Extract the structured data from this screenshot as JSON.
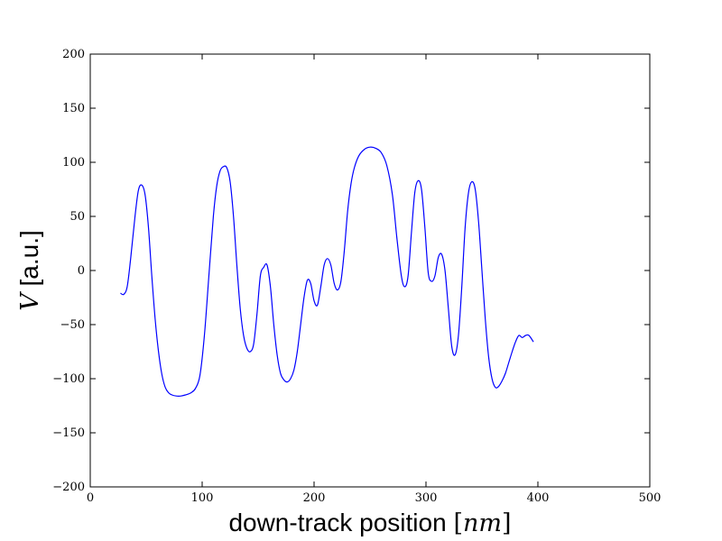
{
  "chart_data": {
    "type": "line",
    "title": "",
    "xlabel": "down-track position [nm]",
    "xlabel_text": "down-track position ",
    "xlabel_unit": "nm",
    "ylabel": "V [a.u.]",
    "ylabel_symbol": "V",
    "ylabel_text": " [a.u.]",
    "xlim": [
      0,
      500
    ],
    "ylim": [
      -200,
      200
    ],
    "xticks": [
      0,
      100,
      200,
      300,
      400,
      500
    ],
    "yticks": [
      -200,
      -150,
      -100,
      -50,
      0,
      50,
      100,
      150,
      200
    ],
    "xtick_labels": [
      "0",
      "100",
      "200",
      "300",
      "400",
      "500"
    ],
    "ytick_labels": [
      "−200",
      "−150",
      "−100",
      "−50",
      "0",
      "50",
      "100",
      "150",
      "200"
    ],
    "grid": false,
    "legend": "none",
    "line_color": "#0000ff",
    "series": [
      {
        "x": [
          27,
          30,
          33,
          36,
          40,
          43,
          46,
          49,
          52,
          55,
          58,
          61,
          64,
          67,
          70,
          73,
          77,
          81,
          85,
          90,
          94,
          98,
          102,
          106,
          110,
          113,
          116,
          119,
          122,
          125,
          128,
          131,
          134,
          137,
          140,
          143,
          146,
          149,
          152,
          155,
          158,
          161,
          164,
          167,
          170,
          173,
          176,
          179,
          182,
          185,
          188,
          191,
          194,
          197,
          200,
          203,
          206,
          209,
          212,
          215,
          218,
          221,
          224,
          227,
          230,
          233,
          236,
          240,
          245,
          250,
          255,
          260,
          265,
          270,
          274,
          278,
          281,
          284,
          287,
          290,
          293,
          296,
          299,
          302,
          305,
          308,
          311,
          314,
          317,
          320,
          323,
          326,
          329,
          332,
          335,
          338,
          341,
          344,
          347,
          350,
          353,
          356,
          359,
          362,
          365,
          368,
          371,
          374,
          377,
          380,
          383,
          386,
          389,
          392,
          396
        ],
        "y": [
          -21,
          -22,
          -15,
          10,
          50,
          74,
          79,
          70,
          40,
          -5,
          -45,
          -75,
          -96,
          -108,
          -113,
          -115,
          -116,
          -116,
          -115,
          -113,
          -109,
          -97,
          -60,
          -5,
          50,
          78,
          92,
          96,
          95,
          82,
          50,
          5,
          -35,
          -60,
          -72,
          -75,
          -68,
          -40,
          -5,
          3,
          5,
          -15,
          -50,
          -78,
          -95,
          -101,
          -103,
          -100,
          -92,
          -75,
          -50,
          -25,
          -9,
          -12,
          -28,
          -32,
          -15,
          5,
          11,
          5,
          -12,
          -18,
          -10,
          18,
          55,
          80,
          95,
          106,
          112,
          114,
          113,
          109,
          97,
          70,
          30,
          -5,
          -15,
          -5,
          35,
          72,
          83,
          75,
          40,
          -2,
          -10,
          -5,
          12,
          15,
          0,
          -35,
          -70,
          -78,
          -60,
          -15,
          40,
          72,
          82,
          75,
          45,
          0,
          -45,
          -80,
          -100,
          -108,
          -107,
          -102,
          -95,
          -85,
          -75,
          -66,
          -60,
          -62,
          -60,
          -60,
          -66
        ]
      }
    ]
  }
}
